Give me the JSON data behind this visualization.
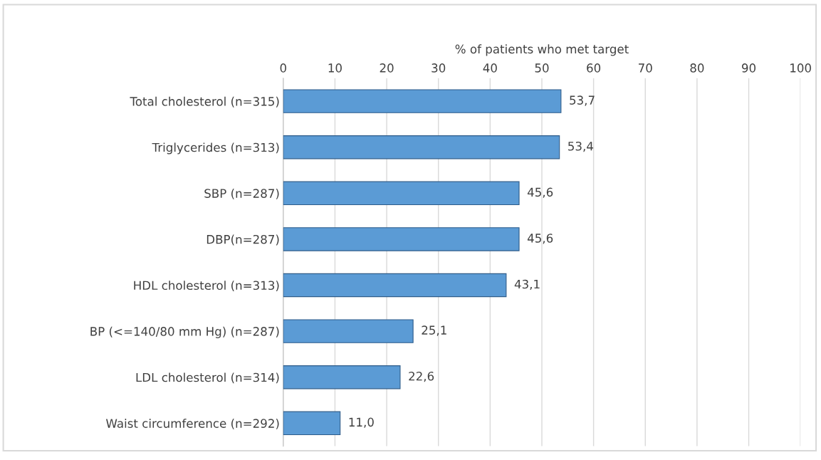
{
  "chart_data": {
    "type": "bar",
    "orientation": "horizontal",
    "xlabel": "% of patients who met target",
    "categories": [
      "Total cholesterol (n=315)",
      "Triglycerides (n=313)",
      "SBP (n=287)",
      "DBP(n=287)",
      "HDL cholesterol (n=313)",
      "BP (<=140/80 mm Hg) (n=287)",
      "LDL cholesterol (n=314)",
      "Waist circumference (n=292)"
    ],
    "values": [
      53.7,
      53.4,
      45.6,
      45.6,
      43.1,
      25.1,
      22.6,
      11.0
    ],
    "value_labels": [
      "53,7",
      "53,4",
      "45,6",
      "45,6",
      "43,1",
      "25,1",
      "22,6",
      "11,0"
    ],
    "color": "#5b9bd5",
    "xlim": [
      0,
      100
    ],
    "xticks": [
      0,
      10,
      20,
      30,
      40,
      50,
      60,
      70,
      80,
      90,
      100
    ],
    "grid": "x",
    "legend": false
  }
}
